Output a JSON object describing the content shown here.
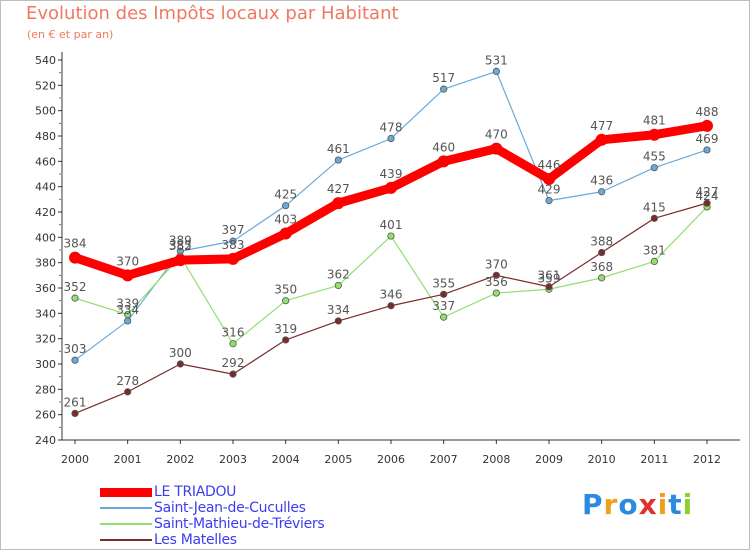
{
  "chart_data": {
    "type": "line",
    "title": "Evolution des Impôts locaux par Habitant",
    "subtitle": "(en € et par an)",
    "x": [
      "2000",
      "2001",
      "2002",
      "2003",
      "2004",
      "2005",
      "2006",
      "2007",
      "2008",
      "2009",
      "2010",
      "2011",
      "2012"
    ],
    "ylim": [
      240,
      540
    ],
    "yticks": [
      240,
      260,
      280,
      300,
      320,
      340,
      360,
      380,
      400,
      420,
      440,
      460,
      480,
      500,
      520,
      540
    ],
    "grid": false,
    "legend_position": "bottom-left",
    "series": [
      {
        "name": "LE TRIADOU",
        "color": "#ff0000",
        "values": [
          384,
          370,
          382,
          383,
          403,
          427,
          439,
          460,
          470,
          446,
          477,
          481,
          488
        ]
      },
      {
        "name": "Saint-Jean-de-Cuculles",
        "color": "#6aaad8",
        "values": [
          303,
          334,
          389,
          397,
          425,
          461,
          478,
          517,
          531,
          429,
          436,
          455,
          469
        ]
      },
      {
        "name": "Saint-Mathieu-de-Tréviers",
        "color": "#90e070",
        "values": [
          352,
          339,
          385,
          316,
          350,
          362,
          401,
          337,
          356,
          359,
          368,
          381,
          424
        ]
      },
      {
        "name": "Les Matelles",
        "color": "#7a2c2c",
        "values": [
          261,
          278,
          300,
          292,
          319,
          334,
          346,
          355,
          370,
          361,
          388,
          415,
          427
        ]
      }
    ]
  },
  "brand": {
    "text": "Proxiti",
    "letters": [
      {
        "char": "P",
        "color": "#2a8be0"
      },
      {
        "char": "r",
        "color": "#f0a020"
      },
      {
        "char": "o",
        "color": "#2a8be0"
      },
      {
        "char": "x",
        "color": "#e03030"
      },
      {
        "char": "i",
        "color": "#f0a020"
      },
      {
        "char": "t",
        "color": "#2a8be0"
      },
      {
        "char": "i",
        "color": "#8ccf30"
      }
    ]
  }
}
